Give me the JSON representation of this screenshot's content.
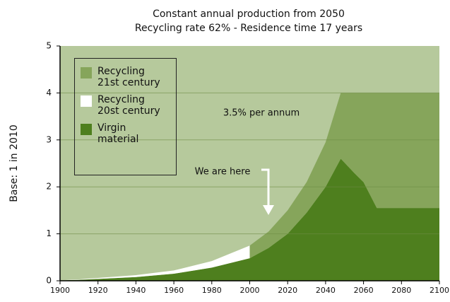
{
  "chart_data": {
    "type": "stacked_area",
    "title": "Constant annual production from 2050",
    "subtitle": "Recycling rate 62% - Residence time 17 years",
    "y_label": "Base: 1 in 2010",
    "x": [
      1900,
      1910,
      1920,
      1940,
      1960,
      1980,
      2000,
      2000,
      2010,
      2020,
      2030,
      2040,
      2048,
      2055,
      2060,
      2067,
      2080,
      2100
    ],
    "series": [
      {
        "name": "Virgin material",
        "color": "#4e7f1e",
        "values": [
          0.01,
          0.02,
          0.04,
          0.08,
          0.15,
          0.28,
          0.48,
          0.48,
          0.7,
          1.0,
          1.45,
          2.0,
          2.6,
          2.3,
          2.1,
          1.55,
          1.55,
          1.55
        ]
      },
      {
        "name": "Recycling 20st century",
        "color": "#ffffff",
        "values": [
          0,
          0.01,
          0.02,
          0.04,
          0.07,
          0.14,
          0.27,
          0,
          0,
          0,
          0,
          0,
          0,
          0,
          0,
          0,
          0,
          0
        ]
      },
      {
        "name": "Recycling 21st century",
        "color": "#86a55b",
        "values": [
          0,
          0,
          0,
          0,
          0,
          0,
          0,
          0.27,
          0.35,
          0.5,
          0.65,
          0.95,
          1.4,
          1.7,
          1.9,
          2.45,
          2.45,
          2.45
        ]
      }
    ],
    "annotations": [
      "3.5% per annum",
      "We are here"
    ],
    "xlim": [
      1900,
      2100
    ],
    "xticks": [
      1900,
      1920,
      1940,
      1960,
      1980,
      2000,
      2020,
      2040,
      2060,
      2080,
      2100
    ],
    "ylim": [
      0,
      5
    ],
    "yticks": [
      0,
      1,
      2,
      3,
      4,
      5
    ],
    "background": "#b6c99c",
    "grid": true
  }
}
